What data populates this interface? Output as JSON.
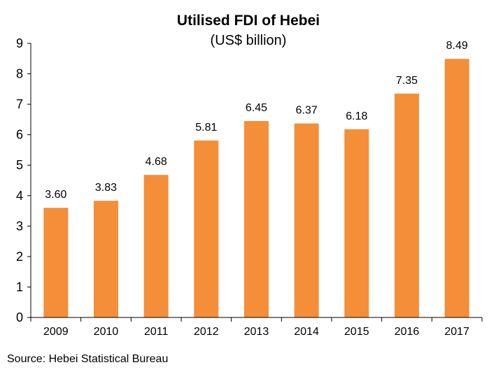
{
  "chart_data": {
    "type": "bar",
    "title": "Utilised FDI of Hebei",
    "subtitle": "(US$ billion)",
    "categories": [
      "2009",
      "2010",
      "2011",
      "2012",
      "2013",
      "2014",
      "2015",
      "2016",
      "2017"
    ],
    "values": [
      3.6,
      3.83,
      4.68,
      5.81,
      6.45,
      6.37,
      6.18,
      7.35,
      8.49
    ],
    "value_labels": [
      "3.60",
      "3.83",
      "4.68",
      "5.81",
      "6.45",
      "6.37",
      "6.18",
      "7.35",
      "8.49"
    ],
    "ylim": [
      0,
      9
    ],
    "yticks": [
      "0",
      "1",
      "2",
      "3",
      "4",
      "5",
      "6",
      "7",
      "8",
      "9"
    ],
    "xlabel": "",
    "ylabel": "",
    "grid": false,
    "legend": "none",
    "bar_color": "#F58E38",
    "axis_color": "#000000"
  },
  "footer": {
    "source": "Source: Hebei Statistical Bureau"
  }
}
